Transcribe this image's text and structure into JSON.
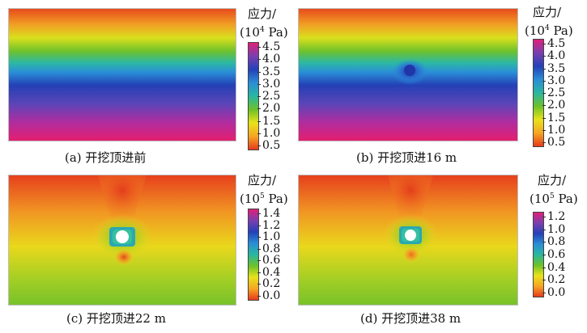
{
  "chart_data": [
    {
      "type": "heatmap",
      "caption": "(a) 开挖顶进前",
      "colorbar_title": "应力/",
      "colorbar_unit_prefix": "(10",
      "colorbar_unit_exp": "4",
      "colorbar_unit_suffix": " Pa)",
      "ticks": [
        "4.5",
        "4.0",
        "3.5",
        "3.0",
        "2.5",
        "2.0",
        "1.5",
        "1.0",
        "0.5"
      ],
      "range": [
        0.5,
        4.5
      ],
      "field": "horizontal-bands"
    },
    {
      "type": "heatmap",
      "caption": "(b) 开挖顶进16 m",
      "colorbar_title": "应力/",
      "colorbar_unit_prefix": "(10",
      "colorbar_unit_exp": "4",
      "colorbar_unit_suffix": " Pa)",
      "ticks": [
        "4.5",
        "4.0",
        "3.5",
        "3.0",
        "2.5",
        "2.0",
        "1.5",
        "1.0",
        "0.5"
      ],
      "range": [
        0.5,
        4.5
      ],
      "field": "horizontal-bands-with-tunnel"
    },
    {
      "type": "heatmap",
      "caption": "(c) 开挖顶进22 m",
      "colorbar_title": "应力/",
      "colorbar_unit_prefix": "(10",
      "colorbar_unit_exp": "5",
      "colorbar_unit_suffix": " Pa)",
      "ticks": [
        "1.4",
        "1.2",
        "1.0",
        "0.8",
        "0.6",
        "0.4",
        "0.2",
        "0.0"
      ],
      "range": [
        0.0,
        1.4
      ],
      "field": "tunnel-concentration"
    },
    {
      "type": "heatmap",
      "caption": "(d) 开挖顶进38 m",
      "colorbar_title": "应力/",
      "colorbar_unit_prefix": "(10",
      "colorbar_unit_exp": "5",
      "colorbar_unit_suffix": " Pa)",
      "ticks": [
        "1.2",
        "1.0",
        "0.8",
        "0.6",
        "0.4",
        "0.2",
        "0.0"
      ],
      "range": [
        0.0,
        1.2
      ],
      "field": "tunnel-concentration"
    }
  ],
  "colors": {
    "colormap": [
      "#e83a1c",
      "#f5a623",
      "#e8e21a",
      "#6cc12a",
      "#29b7a0",
      "#2a8ed6",
      "#2440b8",
      "#7a3fb0",
      "#e0207a"
    ]
  }
}
